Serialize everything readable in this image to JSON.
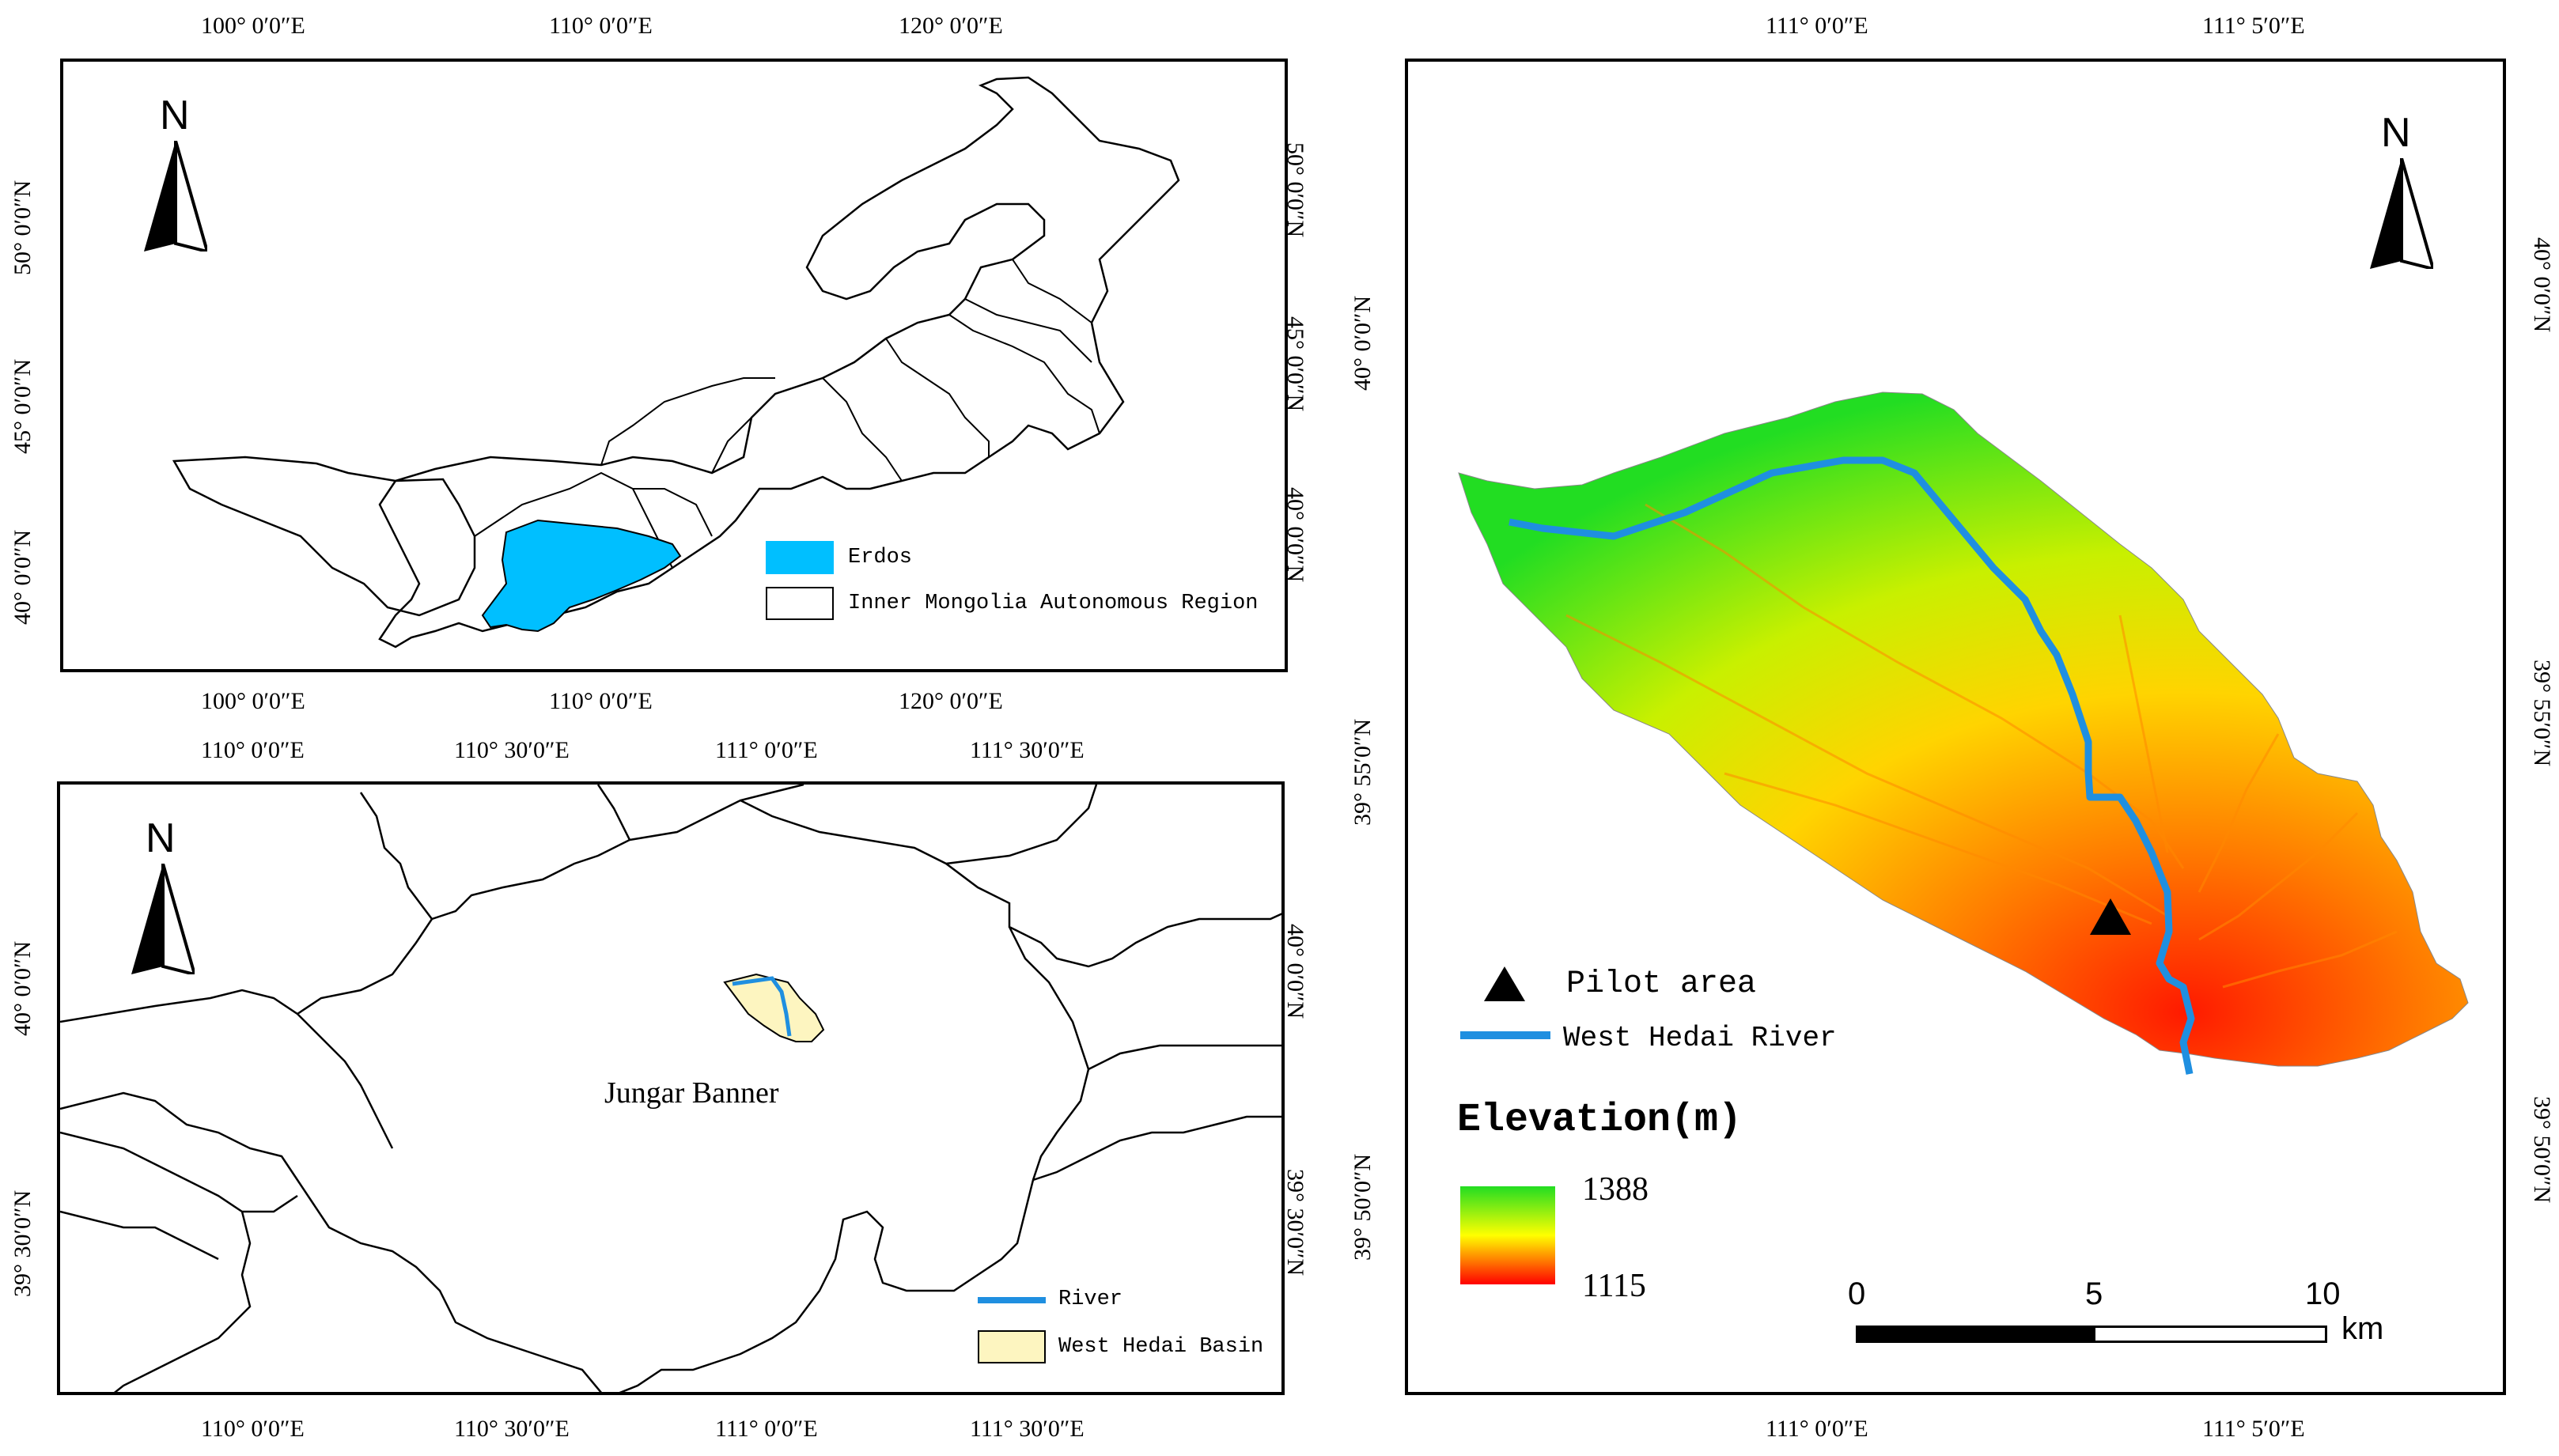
{
  "overview_map": {
    "top_ticks": [
      "100° 0′0″E",
      "110° 0′0″E",
      "120° 0′0″E"
    ],
    "bottom_ticks": [
      "100° 0′0″E",
      "110° 0′0″E",
      "120° 0′0″E"
    ],
    "left_ticks": [
      "50° 0′0″N",
      "45° 0′0″N",
      "40° 0′0″N"
    ],
    "right_ticks": [
      "50° 0′0″N",
      "45° 0′0″N",
      "40° 0′0″N"
    ],
    "north": "N",
    "legend": [
      {
        "label": "Erdos",
        "color": "#00bfff"
      },
      {
        "label": "Inner Mongolia Autonomous Region",
        "color": "#ffffff"
      }
    ]
  },
  "county_map": {
    "top_ticks": [
      "110° 0′0″E",
      "110° 30′0″E",
      "111° 0′0″E",
      "111° 30′0″E"
    ],
    "bottom_ticks": [
      "110° 0′0″E",
      "110° 30′0″E",
      "111° 0′0″E",
      "111° 30′0″E"
    ],
    "left_ticks": [
      "40° 0′0″N",
      "39° 30′0″N"
    ],
    "right_ticks": [
      "40° 0′0″N",
      "39° 30′0″N"
    ],
    "north": "N",
    "place_label": "Jungar Banner",
    "legend": [
      {
        "label": "River",
        "color": "#1f8fe0"
      },
      {
        "label": "West Hedai Basin",
        "color": "#fdf5c0"
      }
    ]
  },
  "basin_map": {
    "top_ticks": [
      "111° 0′0″E",
      "111° 5′0″E"
    ],
    "bottom_ticks": [
      "111° 0′0″E",
      "111° 5′0″E"
    ],
    "left_ticks": [
      "40° 0′0″N",
      "39° 55′0″N",
      "39° 50′0″N"
    ],
    "right_ticks": [
      "40° 0′0″N",
      "39° 55′0″N",
      "39° 50′0″N"
    ],
    "north": "N",
    "legend": [
      {
        "label": "Pilot area",
        "symbol": "triangle"
      },
      {
        "label": "West Hedai River",
        "color": "#1f8fe0"
      }
    ],
    "elevation_title": "Elevation(m)",
    "elevation_max": "1388",
    "elevation_min": "1115",
    "elevation_colors": [
      "#22dd22",
      "#ffff00",
      "#ff0000"
    ],
    "scale_labels": [
      "0",
      "5",
      "10"
    ],
    "scale_unit": "km"
  }
}
